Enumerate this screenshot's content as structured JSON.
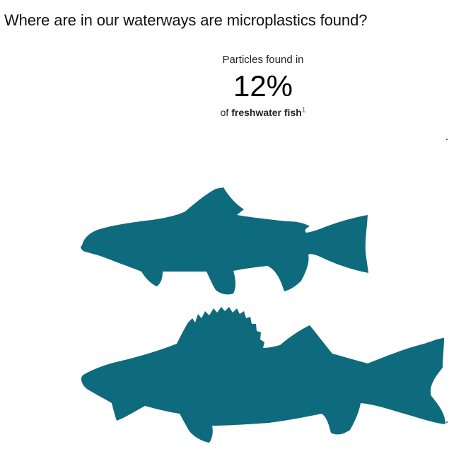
{
  "heading": "Where are in our waterways are microplastics found?",
  "stat": {
    "label": "Particles found in",
    "value": "12%",
    "caption_prefix": "of ",
    "caption_bold": "freshwater fish",
    "footnote": "1"
  },
  "colors": {
    "fish": "#0e6a7d"
  },
  "illustrations": [
    "trout-silhouette",
    "perch-silhouette"
  ]
}
